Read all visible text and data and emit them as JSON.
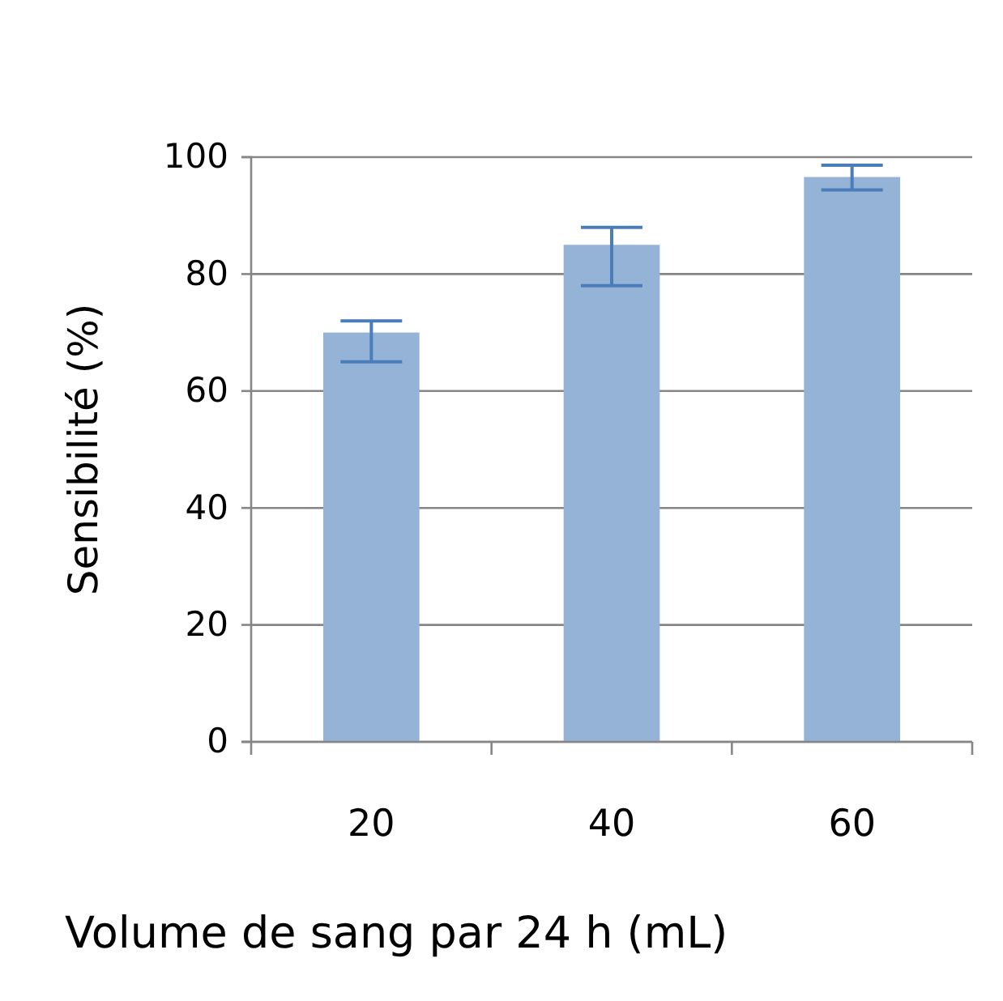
{
  "chart_data": {
    "type": "bar",
    "xlabel": "Volume de sang par 24 h (mL)",
    "ylabel": "Sensibilité (%)",
    "categories": [
      "20",
      "40",
      "60"
    ],
    "values": [
      70,
      85,
      96.6
    ],
    "color": "#95b3d7",
    "errors": [
      [
        65,
        72
      ],
      [
        78,
        88
      ],
      [
        94.4,
        98.6
      ]
    ],
    "ylim": [
      0,
      100
    ],
    "yticks": [
      0,
      20,
      40,
      60,
      80,
      100
    ],
    "grid": "y"
  }
}
